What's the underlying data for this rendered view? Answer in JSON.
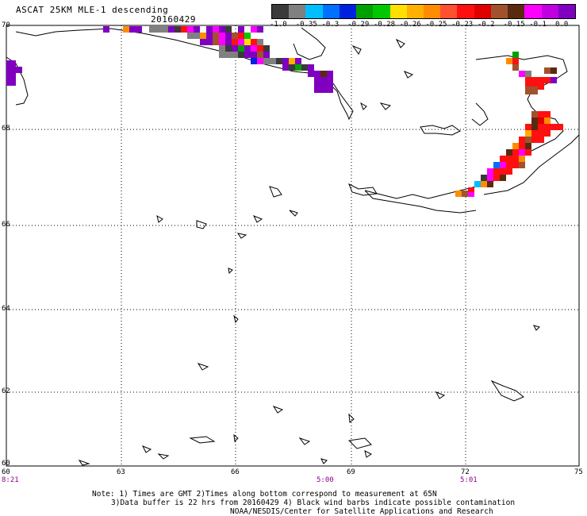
{
  "header": {
    "title": "ASCAT 25KM MLE-1 descending",
    "date": "20160429"
  },
  "colorbar": {
    "colors": [
      "#3a3a3a",
      "#808080",
      "#00bfff",
      "#0070ff",
      "#0020e0",
      "#00a000",
      "#00c800",
      "#ffe000",
      "#ffb000",
      "#ff8c00",
      "#ff5030",
      "#ff1010",
      "#e00000",
      "#a0522d",
      "#5a2a10",
      "#ff00ff",
      "#c000e0",
      "#8000c0"
    ],
    "labels": [
      "-1.0",
      "-0.35",
      "-0.3",
      "-0.29",
      "-0.28",
      "-0.26",
      "-0.25",
      "-0.23",
      "-0.2",
      "-0.15",
      "-0.1",
      "0.0"
    ]
  },
  "axes": {
    "lat_labels": [
      "70",
      "68",
      "66",
      "64",
      "62",
      "60"
    ],
    "lon_labels": [
      "60",
      "63",
      "66",
      "69",
      "72",
      "75"
    ],
    "time_labels": [
      "8:21",
      "5:00",
      "5:01"
    ]
  },
  "footer": {
    "line1": "Note: 1) Times are GMT 2)Times along bottom correspond to measurement at 65N",
    "line2": "3)Data buffer is 22 hrs from 20160429 4) Black wind barbs indicate possible contamination",
    "line3": "NOAA/NESDIS/Center for Satellite Applications and Research"
  }
}
